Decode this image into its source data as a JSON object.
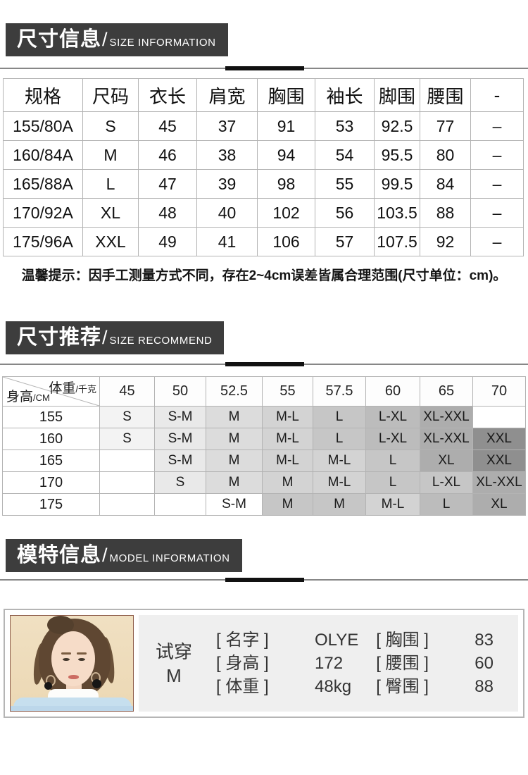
{
  "misc": {
    "slash": "/"
  },
  "colors": {
    "banner_bg": "#3d3d3d",
    "table_border": "#b3b3b3",
    "panel_border": "#b5b5b5",
    "info_bg": "#efefef",
    "tones": {
      "0": "#ffffff",
      "1": "#f3f3f3",
      "2": "#e9e9e9",
      "3": "#dcdcdc",
      "4": "#d3d3d3",
      "5": "#c6c6c6",
      "6": "#bcbcbc",
      "7": "#adadad",
      "8": "#9c9c9c",
      "9": "#8f8f8f"
    }
  },
  "sections": {
    "size_info": {
      "title_zh": "尺寸信息",
      "title_en": "SIZE INFORMATION",
      "table": {
        "headers": [
          "规格",
          "尺码",
          "衣长",
          "肩宽",
          "胸围",
          "袖长",
          "脚围",
          "腰围",
          "-"
        ],
        "rows": [
          [
            "155/80A",
            "S",
            "45",
            "37",
            "91",
            "53",
            "92.5",
            "77",
            "–"
          ],
          [
            "160/84A",
            "M",
            "46",
            "38",
            "94",
            "54",
            "95.5",
            "80",
            "–"
          ],
          [
            "165/88A",
            "L",
            "47",
            "39",
            "98",
            "55",
            "99.5",
            "84",
            "–"
          ],
          [
            "170/92A",
            "XL",
            "48",
            "40",
            "102",
            "56",
            "103.5",
            "88",
            "–"
          ],
          [
            "175/96A",
            "XXL",
            "49",
            "41",
            "106",
            "57",
            "107.5",
            "92",
            "–"
          ]
        ]
      },
      "tip": "温馨提示：因手工测量方式不同，存在2~4cm误差皆属合理范围(尺寸单位：cm)。"
    },
    "size_recommend": {
      "title_zh": "尺寸推荐",
      "title_en": "SIZE RECOMMEND",
      "matrix": {
        "corner_top_main": "体重",
        "corner_top_unit": "/千克",
        "corner_bottom_main": "身高",
        "corner_bottom_unit": "/CM",
        "weight_cols": [
          "45",
          "50",
          "52.5",
          "55",
          "57.5",
          "60",
          "65",
          "70"
        ],
        "rows": [
          {
            "height": "155",
            "cells": [
              {
                "label": "S",
                "tone": 1
              },
              {
                "label": "S-M",
                "tone": 2
              },
              {
                "label": "M",
                "tone": 3
              },
              {
                "label": "M-L",
                "tone": 4
              },
              {
                "label": "L",
                "tone": 5
              },
              {
                "label": "L-XL",
                "tone": 6
              },
              {
                "label": "XL-XXL",
                "tone": 7
              },
              {
                "label": "",
                "tone": 0
              }
            ]
          },
          {
            "height": "160",
            "cells": [
              {
                "label": "S",
                "tone": 1
              },
              {
                "label": "S-M",
                "tone": 2
              },
              {
                "label": "M",
                "tone": 3
              },
              {
                "label": "M-L",
                "tone": 4
              },
              {
                "label": "L",
                "tone": 5
              },
              {
                "label": "L-XL",
                "tone": 6
              },
              {
                "label": "XL-XXL",
                "tone": 7
              },
              {
                "label": "XXL",
                "tone": 9
              }
            ]
          },
          {
            "height": "165",
            "cells": [
              {
                "label": "",
                "tone": 0
              },
              {
                "label": "S-M",
                "tone": 2
              },
              {
                "label": "M",
                "tone": 3
              },
              {
                "label": "M-L",
                "tone": 4
              },
              {
                "label": "M-L",
                "tone": 4
              },
              {
                "label": "L",
                "tone": 5
              },
              {
                "label": "XL",
                "tone": 7
              },
              {
                "label": "XXL",
                "tone": 9
              }
            ]
          },
          {
            "height": "170",
            "cells": [
              {
                "label": "",
                "tone": 0
              },
              {
                "label": "S",
                "tone": 2
              },
              {
                "label": "M",
                "tone": 3
              },
              {
                "label": "M",
                "tone": 4
              },
              {
                "label": "M-L",
                "tone": 4
              },
              {
                "label": "L",
                "tone": 5
              },
              {
                "label": "L-XL",
                "tone": 5
              },
              {
                "label": "XL-XXL",
                "tone": 7
              }
            ]
          },
          {
            "height": "175",
            "cells": [
              {
                "label": "",
                "tone": 0
              },
              {
                "label": "",
                "tone": 0
              },
              {
                "label": "S-M",
                "tone": 0
              },
              {
                "label": "M",
                "tone": 5
              },
              {
                "label": "M",
                "tone": 5
              },
              {
                "label": "M-L",
                "tone": 4
              },
              {
                "label": "L",
                "tone": 6
              },
              {
                "label": "XL",
                "tone": 7
              }
            ]
          }
        ]
      }
    },
    "model_info": {
      "title_zh": "模特信息",
      "title_en": "MODEL INFORMATION",
      "wears_label": "试穿",
      "wears_size": "M",
      "fields_left": [
        {
          "label": "[ 名字 ]",
          "value": "OLYE"
        },
        {
          "label": "[ 身高 ]",
          "value": "172"
        },
        {
          "label": "[ 体重 ]",
          "value": "48kg"
        }
      ],
      "fields_right": [
        {
          "label": "[ 胸围 ]",
          "value": "83"
        },
        {
          "label": "[ 腰围 ]",
          "value": "60"
        },
        {
          "label": "[ 臀围 ]",
          "value": "88"
        }
      ]
    }
  }
}
